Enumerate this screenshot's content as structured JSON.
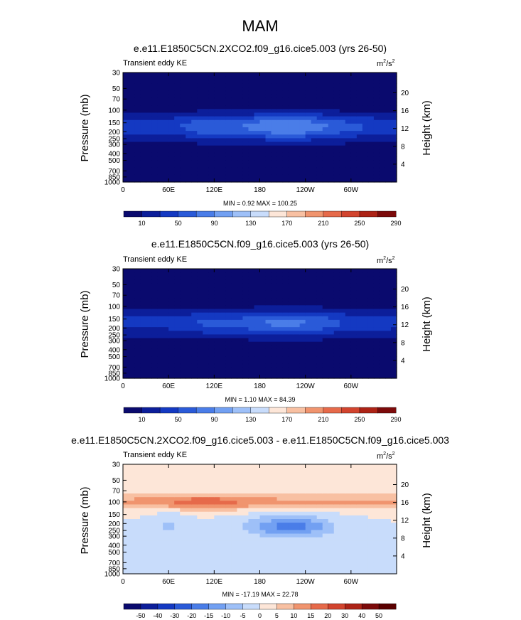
{
  "figure": {
    "title": "MAM"
  },
  "panels": [
    {
      "title": "e.e11.E1850C5CN.2XCO2.f09_g16.cice5.003 (yrs 26-50)",
      "left_label": "Transient eddy KE",
      "units_base": "m",
      "units_exp1": "2",
      "units_mid": "/s",
      "units_exp2": "2",
      "stats": "MIN =   0.92  MAX = 100.25",
      "ylabel": "Pressure (mb)",
      "y2label": "Height (km)",
      "colorbar_labels": [
        "10",
        "50",
        "90",
        "130",
        "170",
        "210",
        "250",
        "290"
      ]
    },
    {
      "title": "e.e11.E1850C5CN.f09_g16.cice5.003 (yrs 26-50)",
      "left_label": "Transient eddy KE",
      "units_base": "m",
      "units_exp1": "2",
      "units_mid": "/s",
      "units_exp2": "2",
      "stats": "MIN =   1.10  MAX =  84.39",
      "ylabel": "Pressure (mb)",
      "y2label": "Height (km)",
      "colorbar_labels": [
        "10",
        "50",
        "90",
        "130",
        "170",
        "210",
        "250",
        "290"
      ]
    },
    {
      "title": "e.e11.E1850C5CN.2XCO2.f09_g16.cice5.003 - e.e11.E1850C5CN.f09_g16.cice5.003",
      "left_label": "Transient eddy KE",
      "units_base": "m",
      "units_exp1": "2",
      "units_mid": "/s",
      "units_exp2": "2",
      "stats": "MIN = -17.19  MAX =  22.78",
      "ylabel": "Pressure (mb)",
      "y2label": "Height (km)",
      "colorbar_labels": [
        "-50",
        "-40",
        "-30",
        "-20",
        "-15",
        "-10",
        "-5",
        "0",
        "5",
        "10",
        "15",
        "20",
        "30",
        "40",
        "50"
      ]
    }
  ],
  "chart_data": [
    {
      "type": "heatmap",
      "plot_style": "filled contour (longitude-pressure section)",
      "title": "e.e11.E1850C5CN.2XCO2.f09_g16.cice5.003 (yrs 26-50)",
      "variable": "Transient eddy KE",
      "units": "m2/s2",
      "xlabel": "",
      "ylabel": "Pressure (mb)",
      "y2label": "Height (km)",
      "x_ticks": [
        "0",
        "60E",
        "120E",
        "180",
        "120W",
        "60W"
      ],
      "x_tick_values": [
        0,
        60,
        120,
        180,
        240,
        300
      ],
      "xlim": [
        0,
        360
      ],
      "y_ticks": [
        30,
        50,
        70,
        100,
        150,
        200,
        250,
        300,
        400,
        500,
        700,
        850,
        1000
      ],
      "y2_ticks": [
        4,
        8,
        12,
        16,
        20
      ],
      "ylim": [
        1000,
        30
      ],
      "y_scale": "log",
      "contour_levels": [
        10,
        30,
        50,
        70,
        90,
        110,
        130,
        150,
        170,
        190,
        210,
        230,
        250,
        270,
        290
      ],
      "colorbar_ticks": [
        10,
        50,
        90,
        130,
        170,
        210,
        250,
        290
      ],
      "colors": [
        "#0a0a6e",
        "#0c1e9a",
        "#1439c2",
        "#2a5ad8",
        "#4a7de8",
        "#72a0f2",
        "#9ec0f8",
        "#c8dcfb",
        "#fde6d8",
        "#f8c0a2",
        "#f0946e",
        "#e66a4a",
        "#d2442e",
        "#ad2316",
        "#7c0a0a"
      ],
      "min": 0.92,
      "max": 100.25,
      "features": [
        {
          "description": "jet-level maximum near 150-200 mb",
          "lon_range": [
            60,
            300
          ],
          "approx_value": 70
        },
        {
          "description": "strongest core near 180-240 (Pacific)",
          "lon_range": [
            180,
            260
          ],
          "approx_value": 90
        },
        {
          "description": "upper stratosphere minimum",
          "pressure": 30,
          "approx_value": 10
        }
      ]
    },
    {
      "type": "heatmap",
      "plot_style": "filled contour (longitude-pressure section)",
      "title": "e.e11.E1850C5CN.f09_g16.cice5.003 (yrs 26-50)",
      "variable": "Transient eddy KE",
      "units": "m2/s2",
      "xlabel": "",
      "ylabel": "Pressure (mb)",
      "y2label": "Height (km)",
      "x_ticks": [
        "0",
        "60E",
        "120E",
        "180",
        "120W",
        "60W"
      ],
      "x_tick_values": [
        0,
        60,
        120,
        180,
        240,
        300
      ],
      "xlim": [
        0,
        360
      ],
      "y_ticks": [
        30,
        50,
        70,
        100,
        150,
        200,
        250,
        300,
        400,
        500,
        700,
        850,
        1000
      ],
      "y2_ticks": [
        4,
        8,
        12,
        16,
        20
      ],
      "ylim": [
        1000,
        30
      ],
      "y_scale": "log",
      "contour_levels": [
        10,
        30,
        50,
        70,
        90,
        110,
        130,
        150,
        170,
        190,
        210,
        230,
        250,
        270,
        290
      ],
      "colorbar_ticks": [
        10,
        50,
        90,
        130,
        170,
        210,
        250,
        290
      ],
      "colors": [
        "#0a0a6e",
        "#0c1e9a",
        "#1439c2",
        "#2a5ad8",
        "#4a7de8",
        "#72a0f2",
        "#9ec0f8",
        "#c8dcfb",
        "#fde6d8",
        "#f8c0a2",
        "#f0946e",
        "#e66a4a",
        "#d2442e",
        "#ad2316",
        "#7c0a0a"
      ],
      "min": 1.1,
      "max": 84.39,
      "features": [
        {
          "description": "jet-level maximum near 150-200 mb",
          "lon_range": [
            60,
            300
          ],
          "approx_value": 70
        },
        {
          "description": "strongest core near 180-260",
          "lon_range": [
            180,
            260
          ],
          "approx_value": 80
        }
      ]
    },
    {
      "type": "heatmap",
      "plot_style": "filled contour (difference)",
      "title": "e.e11.E1850C5CN.2XCO2.f09_g16.cice5.003 - e.e11.E1850C5CN.f09_g16.cice5.003",
      "variable": "Transient eddy KE",
      "units": "m2/s2",
      "xlabel": "",
      "ylabel": "Pressure (mb)",
      "y2label": "Height (km)",
      "x_ticks": [
        "0",
        "60E",
        "120E",
        "180",
        "120W",
        "60W"
      ],
      "x_tick_values": [
        0,
        60,
        120,
        180,
        240,
        300
      ],
      "xlim": [
        0,
        360
      ],
      "y_ticks": [
        30,
        50,
        70,
        100,
        150,
        200,
        250,
        300,
        400,
        500,
        700,
        850,
        1000
      ],
      "y2_ticks": [
        4,
        8,
        12,
        16,
        20
      ],
      "ylim": [
        1000,
        30
      ],
      "y_scale": "log",
      "contour_levels": [
        -50,
        -40,
        -30,
        -20,
        -15,
        -10,
        -5,
        0,
        5,
        10,
        15,
        20,
        30,
        40,
        50
      ],
      "colorbar_ticks": [
        -50,
        -40,
        -30,
        -20,
        -15,
        -10,
        -5,
        0,
        5,
        10,
        15,
        20,
        30,
        40,
        50
      ],
      "colors": [
        "#0a0a6e",
        "#0c1e9a",
        "#1439c2",
        "#2a5ad8",
        "#4a7de8",
        "#72a0f2",
        "#9ec0f8",
        "#c8dcfb",
        "#fde6d8",
        "#f8c0a2",
        "#f0946e",
        "#e66a4a",
        "#d2442e",
        "#ad2316",
        "#7c0a0a",
        "#5a0000"
      ],
      "min": -17.19,
      "max": 22.78,
      "features": [
        {
          "description": "positive anomaly band near 100 mb",
          "lon_range": [
            0,
            360
          ],
          "approx_value": 15
        },
        {
          "description": "negative anomaly near 200-250 mb",
          "lon_range": [
            160,
            280
          ],
          "approx_value": -15
        },
        {
          "description": "weak positive upper levels",
          "pressure": 50,
          "approx_value": 2
        }
      ]
    }
  ]
}
